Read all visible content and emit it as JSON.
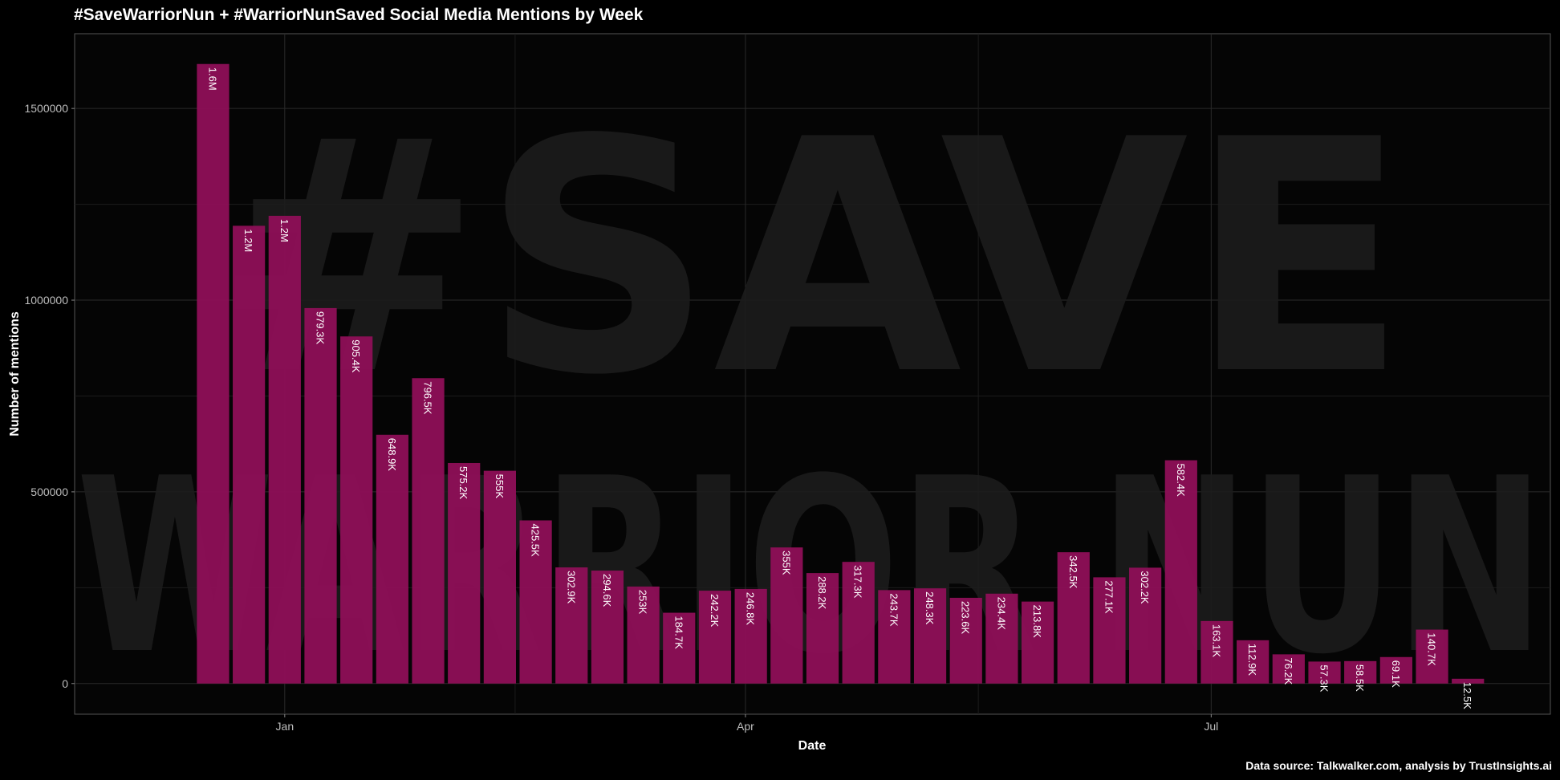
{
  "chart_data": {
    "type": "bar",
    "title": "#SaveWarriorNun + #WarriorNunSaved Social Media Mentions by Week",
    "x_label": "Date",
    "y_label": "Number of mentions",
    "caption": "Data source: Talkwalker.com, analysis by TrustInsights.ai",
    "watermark": [
      "#SAVE",
      "WARRIOR NUN"
    ],
    "categories": [
      null,
      null,
      null,
      null,
      null,
      null,
      null,
      null,
      null,
      null,
      null,
      null,
      null,
      null,
      null,
      null,
      null,
      null,
      null,
      null,
      null,
      null,
      null,
      null,
      null,
      null,
      null,
      null,
      null,
      null,
      null,
      null,
      null,
      null,
      null,
      null
    ],
    "values": [
      1616000,
      1194000,
      1220000,
      979300,
      905400,
      648900,
      796500,
      575200,
      555000,
      425500,
      302900,
      294600,
      253000,
      184700,
      242200,
      246800,
      355000,
      288200,
      317300,
      243700,
      248300,
      223600,
      234400,
      213800,
      342500,
      277100,
      302200,
      582400,
      163100,
      112900,
      76200,
      57300,
      58500,
      69100,
      140700,
      12500
    ],
    "value_labels": [
      "1.6M",
      "1.2M",
      "1.2M",
      "979.3K",
      "905.4K",
      "648.9K",
      "796.5K",
      "575.2K",
      "555K",
      "425.5K",
      "302.9K",
      "294.6K",
      "253K",
      "184.7K",
      "242.2K",
      "246.8K",
      "355K",
      "288.2K",
      "317.3K",
      "243.7K",
      "248.3K",
      "223.6K",
      "234.4K",
      "213.8K",
      "342.5K",
      "277.1K",
      "302.2K",
      "582.4K",
      "163.1K",
      "112.9K",
      "76.2K",
      "57.3K",
      "58.5K",
      "69.1K",
      "140.7K",
      "12.5K"
    ],
    "color": "#8e0f57",
    "xlim": [
      -3.86,
      37.3
    ],
    "xticks": [
      {
        "value": 2.0,
        "label": "Jan"
      },
      {
        "value": 14.85,
        "label": "Apr"
      },
      {
        "value": 27.84,
        "label": "Jul"
      }
    ],
    "ylim": [
      -80000,
      1695000
    ],
    "yticks": [
      0,
      500000,
      1000000,
      1500000
    ],
    "grid": true
  }
}
